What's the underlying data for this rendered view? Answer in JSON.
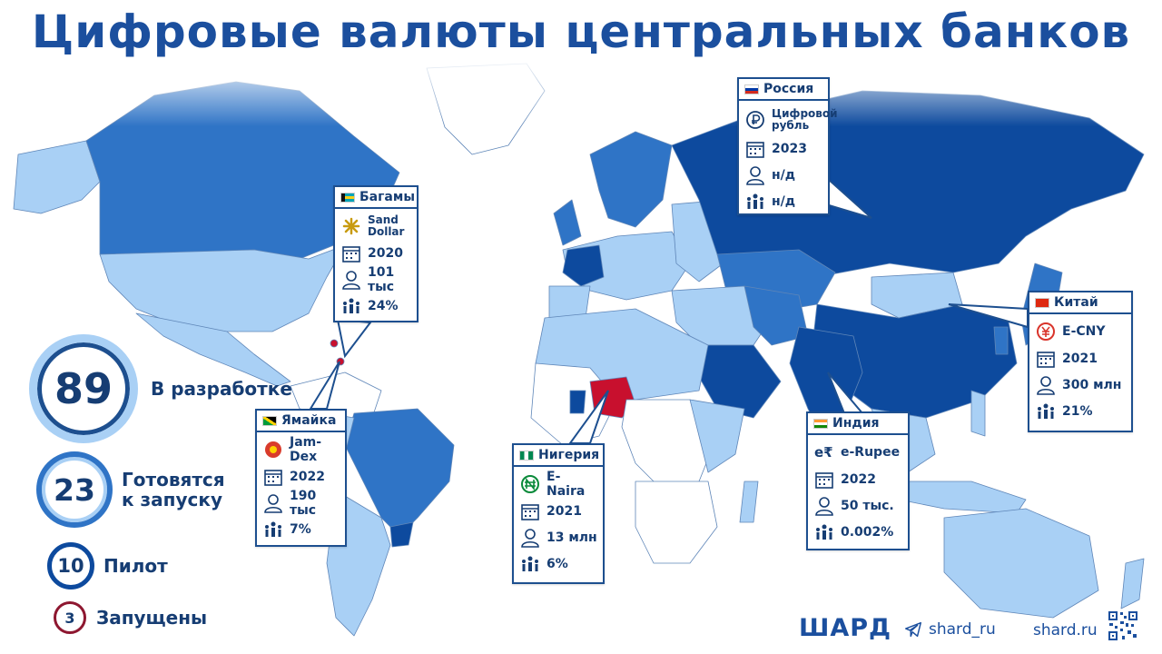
{
  "title": "Цифровые валюты центральных банков",
  "colors": {
    "launched": "#c8102e",
    "pilot": "#0d4a9e",
    "preparing": "#2f74c6",
    "developing": "#a9d0f5",
    "none": "#ffffff",
    "border": "#1d4f8f"
  },
  "legend": [
    {
      "count": "89",
      "label": "В разработке"
    },
    {
      "count": "23",
      "label": "Готовятся\nк запуску"
    },
    {
      "count": "10",
      "label": "Пилот"
    },
    {
      "count": "3",
      "label": "Запущены"
    }
  ],
  "cards": {
    "bahamas": {
      "country": "Багамы",
      "currency": "Sand Dollar",
      "year": "2020",
      "users": "101 тыс",
      "share": "24%"
    },
    "jamaica": {
      "country": "Ямайка",
      "currency": "Jam-Dex",
      "year": "2022",
      "users": "190 тыс",
      "share": "7%"
    },
    "nigeria": {
      "country": "Нигерия",
      "currency": "E-Naira",
      "year": "2021",
      "users": "13 млн",
      "share": "6%"
    },
    "russia": {
      "country": "Россия",
      "currency": "Цифровой рубль",
      "year": "2023",
      "users": "н/д",
      "share": "н/д"
    },
    "india": {
      "country": "Индия",
      "currency": "e-Rupee",
      "year": "2022",
      "users": "50 тыс.",
      "share": "0.002%"
    },
    "china": {
      "country": "Китай",
      "currency": "E-CNY",
      "year": "2021",
      "users": "300 млн",
      "share": "21%"
    }
  },
  "footer": {
    "brand": "ШАРД",
    "telegram": "shard_ru",
    "site": "shard.ru"
  },
  "icons": {
    "calendar": "calendar-icon",
    "user": "user-icon",
    "population": "people-group-icon",
    "telegram": "telegram-icon",
    "qr": "qr-code-icon"
  }
}
